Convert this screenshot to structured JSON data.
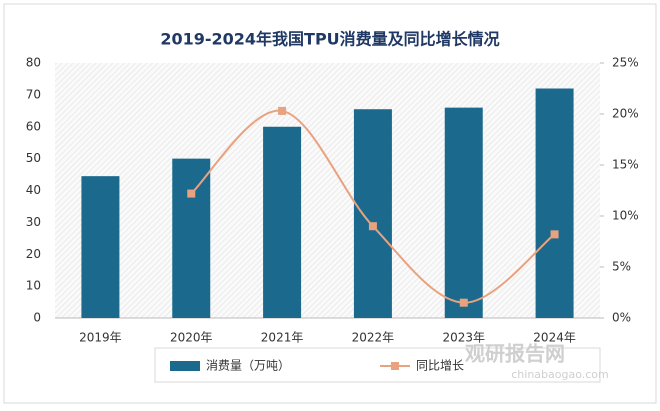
{
  "chart_data": {
    "type": "bar",
    "title": "2019-2024年我国TPU消费量及同比增长情况",
    "categories": [
      "2019年",
      "2020年",
      "2021年",
      "2022年",
      "2023年",
      "2024年"
    ],
    "series": [
      {
        "name": "消费量（万吨）",
        "type": "bar",
        "color": "#1b6a8e",
        "values": [
          44.5,
          50,
          60,
          65.5,
          66,
          72
        ]
      },
      {
        "name": "同比增长",
        "type": "line",
        "axis": "y2",
        "color": "#e9a27f",
        "values": [
          null,
          12.2,
          20.3,
          9,
          1.5,
          8.2
        ]
      }
    ],
    "ylim": [
      0,
      80
    ],
    "yticks": [
      0,
      10,
      20,
      30,
      40,
      50,
      60,
      70,
      80
    ],
    "y2lim": [
      0,
      25
    ],
    "y2ticks": [
      {
        "value": 0,
        "label": "0%"
      },
      {
        "value": 5,
        "label": "5%"
      },
      {
        "value": 10,
        "label": "10%"
      },
      {
        "value": 15,
        "label": "15%"
      },
      {
        "value": 20,
        "label": "20%"
      },
      {
        "value": 25,
        "label": "25%"
      }
    ],
    "legend": "bottom",
    "watermark": {
      "name": "观研报告网",
      "url": "chinabaogao.com"
    }
  }
}
